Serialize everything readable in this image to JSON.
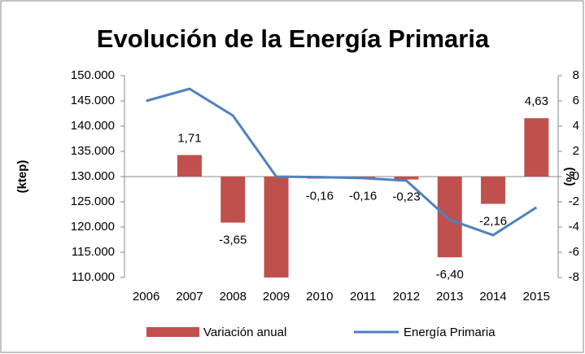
{
  "chart_data": {
    "type": "bar",
    "title": "Evolución de la Energía Primaria",
    "ylabel": "(ktep)",
    "y2label": "(%)",
    "categories": [
      "2006",
      "2007",
      "2008",
      "2009",
      "2010",
      "2011",
      "2012",
      "2013",
      "2014",
      "2015"
    ],
    "series": [
      {
        "name": "Variación anual",
        "type": "bar",
        "axis": "y2",
        "color": "#c0504d",
        "values": [
          null,
          1.71,
          -3.65,
          -8,
          -0.16,
          -0.16,
          -0.23,
          -6.4,
          -2.16,
          4.63
        ],
        "value_labels": [
          null,
          "1,71",
          "-3,65",
          null,
          "-0,16",
          "-0,16",
          "-0,23",
          "-6,40",
          "-2,16",
          "4,63"
        ]
      },
      {
        "name": "Energía Primaria",
        "type": "line",
        "axis": "y",
        "color": "#4f81bd",
        "values": [
          145000,
          147400,
          142100,
          130000,
          129900,
          129700,
          129200,
          121450,
          118400,
          123900
        ]
      }
    ],
    "ylim": [
      110000,
      150000
    ],
    "yticks": [
      {
        "value": 110000,
        "label": "110.000"
      },
      {
        "value": 115000,
        "label": "115.000"
      },
      {
        "value": 120000,
        "label": "120.000"
      },
      {
        "value": 125000,
        "label": "125.000"
      },
      {
        "value": 130000,
        "label": "130.000"
      },
      {
        "value": 135000,
        "label": "135.000"
      },
      {
        "value": 140000,
        "label": "140.000"
      },
      {
        "value": 145000,
        "label": "145.000"
      },
      {
        "value": 150000,
        "label": "150.000"
      }
    ],
    "y2lim": [
      -8,
      8
    ],
    "y2ticks": [
      -8,
      -6,
      -4,
      -2,
      0,
      2,
      4,
      6,
      8
    ],
    "legend": "bottom"
  }
}
